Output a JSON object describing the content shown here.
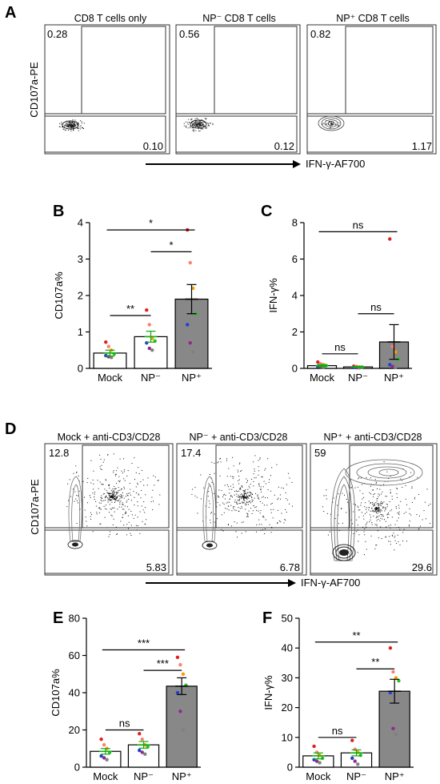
{
  "panels": {
    "A": {
      "letter": "A",
      "ylabel": "CD107a-PE",
      "xlabel": "IFN-γ-AF700",
      "plots": [
        {
          "title": "CD8 T cells only",
          "q_upper": "0.28",
          "q_lower": "0.10"
        },
        {
          "title": "NP⁻ CD8 T cells",
          "q_upper": "0.56",
          "q_lower": "0.12"
        },
        {
          "title": "NP⁺ CD8 T cells",
          "q_upper": "0.82",
          "q_lower": "1.17"
        }
      ]
    },
    "D": {
      "letter": "D",
      "ylabel": "CD107a-PE",
      "xlabel": "IFN-γ-AF700",
      "plots": [
        {
          "title": "Mock + anti-CD3/CD28",
          "q_upper": "12.8",
          "q_lower": "5.83"
        },
        {
          "title": "NP⁻ + anti-CD3/CD28",
          "q_upper": "17.4",
          "q_lower": "6.78"
        },
        {
          "title": "NP⁺ + anti-CD3/CD28",
          "q_upper": "59",
          "q_lower": "29.6"
        }
      ]
    }
  },
  "chart_data": [
    {
      "panel": "B",
      "type": "bar",
      "ylabel": "CD107a%",
      "categories": [
        "Mock",
        "NP⁻",
        "NP⁺"
      ],
      "yticks": [
        "0",
        "1",
        "2",
        "3",
        "4"
      ],
      "ylim": [
        0,
        4
      ],
      "means": [
        0.42,
        0.87,
        1.9
      ],
      "sem": [
        0.08,
        0.15,
        0.4
      ],
      "bar_colors": [
        "#ffffff",
        "#ffffff",
        "#888888"
      ],
      "points": [
        [
          0.72,
          0.6,
          0.5,
          0.4,
          0.35,
          0.32,
          0.3
        ],
        [
          1.6,
          1.2,
          0.82,
          0.75,
          0.7,
          0.55,
          0.5
        ],
        [
          3.8,
          2.9,
          2.2,
          1.5,
          1.2,
          0.7,
          0.45
        ]
      ],
      "point_colors": [
        "#e02020",
        "#ff7f6f",
        "#ff9a00",
        "#22c322",
        "#2040d0",
        "#8e2a8e",
        "#808080"
      ],
      "significance": [
        {
          "from": 0,
          "to": 1,
          "label": "**"
        },
        {
          "from": 1,
          "to": 2,
          "label": "*"
        },
        {
          "from": 0,
          "to": 2,
          "label": "*"
        }
      ]
    },
    {
      "panel": "C",
      "type": "bar",
      "ylabel": "IFN-γ%",
      "categories": [
        "Mock",
        "NP⁻",
        "NP⁺"
      ],
      "yticks": [
        "0",
        "2",
        "4",
        "6",
        "8"
      ],
      "ylim": [
        0,
        8
      ],
      "means": [
        0.15,
        0.08,
        1.45
      ],
      "sem": [
        0.06,
        0.03,
        0.95
      ],
      "bar_colors": [
        "#ffffff",
        "#ffffff",
        "#888888"
      ],
      "points": [
        [
          0.35,
          0.25,
          0.2,
          0.15,
          0.1,
          0.08,
          0.05
        ],
        [
          0.12,
          0.1,
          0.08,
          0.07,
          0.05,
          0.04,
          0.03
        ],
        [
          7.1,
          1.2,
          0.9,
          0.5,
          0.2,
          0.1,
          0.05
        ]
      ],
      "point_colors": [
        "#e02020",
        "#ff7f6f",
        "#ff9a00",
        "#22c322",
        "#2040d0",
        "#8e2a8e",
        "#808080"
      ],
      "significance": [
        {
          "from": 0,
          "to": 1,
          "label": "ns"
        },
        {
          "from": 1,
          "to": 2,
          "label": "ns"
        },
        {
          "from": 0,
          "to": 2,
          "label": "ns"
        }
      ]
    },
    {
      "panel": "E",
      "type": "bar",
      "ylabel": "CD107a%",
      "categories": [
        "Mock",
        "NP⁻",
        "NP⁺"
      ],
      "yticks": [
        "0",
        "20",
        "40",
        "60",
        "80"
      ],
      "ylim": [
        0,
        80
      ],
      "means": [
        8.5,
        12,
        43.5
      ],
      "sem": [
        1.5,
        1.8,
        4.5
      ],
      "bar_colors": [
        "#ffffff",
        "#ffffff",
        "#888888"
      ],
      "points": [
        [
          15,
          12,
          10,
          8,
          6,
          5,
          4
        ],
        [
          18,
          15,
          12,
          11,
          9,
          8,
          7
        ],
        [
          59,
          55,
          50,
          44,
          40,
          30,
          20
        ]
      ],
      "point_colors": [
        "#e02020",
        "#ff7f6f",
        "#ff9a00",
        "#22c322",
        "#2040d0",
        "#8e2a8e",
        "#808080"
      ],
      "significance": [
        {
          "from": 0,
          "to": 1,
          "label": "ns"
        },
        {
          "from": 1,
          "to": 2,
          "label": "***"
        },
        {
          "from": 0,
          "to": 2,
          "label": "***"
        }
      ]
    },
    {
      "panel": "F",
      "type": "bar",
      "ylabel": "IFN-γ%",
      "categories": [
        "Mock",
        "NP⁻",
        "NP⁺"
      ],
      "yticks": [
        "0",
        "10",
        "20",
        "30",
        "40",
        "50"
      ],
      "ylim": [
        0,
        50
      ],
      "means": [
        3.8,
        4.8,
        25.5
      ],
      "sem": [
        1.0,
        1.0,
        4.0
      ],
      "bar_colors": [
        "#ffffff",
        "#ffffff",
        "#888888"
      ],
      "points": [
        [
          7,
          5,
          4,
          3,
          2.5,
          2,
          1.5
        ],
        [
          9,
          6,
          5,
          4,
          3,
          2,
          1
        ],
        [
          40,
          32,
          30,
          29,
          25,
          13,
          11
        ]
      ],
      "point_colors": [
        "#e02020",
        "#ff7f6f",
        "#ff9a00",
        "#22c322",
        "#2040d0",
        "#8e2a8e",
        "#808080"
      ],
      "significance": [
        {
          "from": 0,
          "to": 1,
          "label": "ns"
        },
        {
          "from": 1,
          "to": 2,
          "label": "**"
        },
        {
          "from": 0,
          "to": 2,
          "label": "**"
        }
      ]
    }
  ]
}
